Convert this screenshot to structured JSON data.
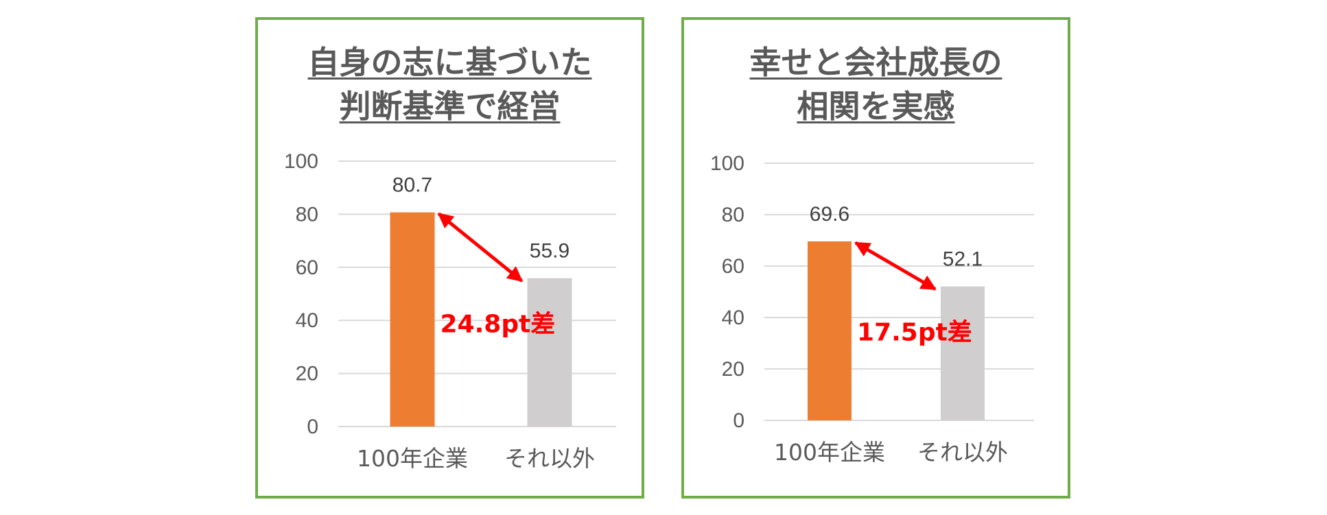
{
  "chart_data": [
    {
      "type": "bar",
      "title_lines": [
        "自身の志に基づいた",
        "判断基準で経営"
      ],
      "categories": [
        "100年企業",
        "それ以外"
      ],
      "values": [
        80.7,
        55.9
      ],
      "value_labels": [
        "80.7",
        "55.9"
      ],
      "ylim": [
        0,
        100
      ],
      "yticks": [
        "0",
        "20",
        "40",
        "60",
        "80",
        "100"
      ],
      "grid": true,
      "colors": [
        "#ed7d31",
        "#d0cece"
      ],
      "annotation": "24.8pt差",
      "annotation_color": "#ff0000",
      "border_color": "#70ad47"
    },
    {
      "type": "bar",
      "title_lines": [
        "幸せと会社成長の",
        "相関を実感"
      ],
      "categories": [
        "100年企業",
        "それ以外"
      ],
      "values": [
        69.6,
        52.1
      ],
      "value_labels": [
        "69.6",
        "52.1"
      ],
      "ylim": [
        0,
        100
      ],
      "yticks": [
        "0",
        "20",
        "40",
        "60",
        "80",
        "100"
      ],
      "grid": true,
      "colors": [
        "#ed7d31",
        "#d0cece"
      ],
      "annotation": "17.5pt差",
      "annotation_color": "#ff0000",
      "border_color": "#70ad47"
    }
  ]
}
